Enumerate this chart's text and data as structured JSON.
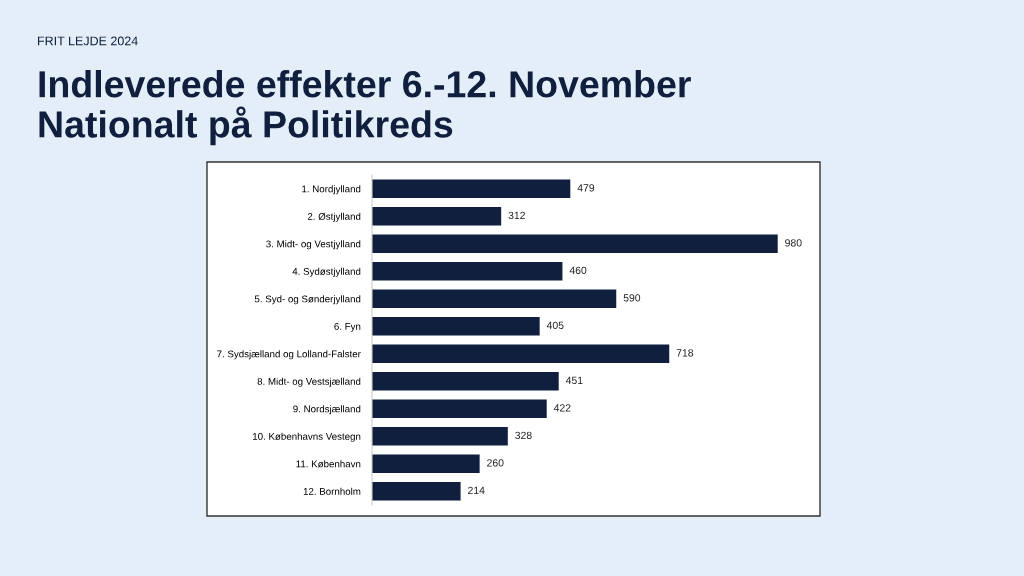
{
  "chart_data": {
    "type": "bar",
    "orientation": "horizontal",
    "title": "Indleverede effekter 6.-12. November\nNationalt på Politikreds",
    "subtitle": "FRIT LEJDE 2024",
    "categories": [
      "1. Nordjylland",
      "2. Østjylland",
      "3. Midt- og Vestjylland",
      "4. Sydøstjylland",
      "5. Syd- og Sønderjylland",
      "6. Fyn",
      "7. Sydsjælland og Lolland-Falster",
      "8. Midt- og Vestsjælland",
      "9. Nordsjælland",
      "10. Københavns Vestegn",
      "11. København",
      "12. Bornholm"
    ],
    "values": [
      479,
      312,
      980,
      460,
      590,
      405,
      718,
      451,
      422,
      328,
      260,
      214
    ],
    "color": "#0f1f3d",
    "data_labels": true,
    "tick_labels": "y",
    "grid": false,
    "legend": false
  }
}
